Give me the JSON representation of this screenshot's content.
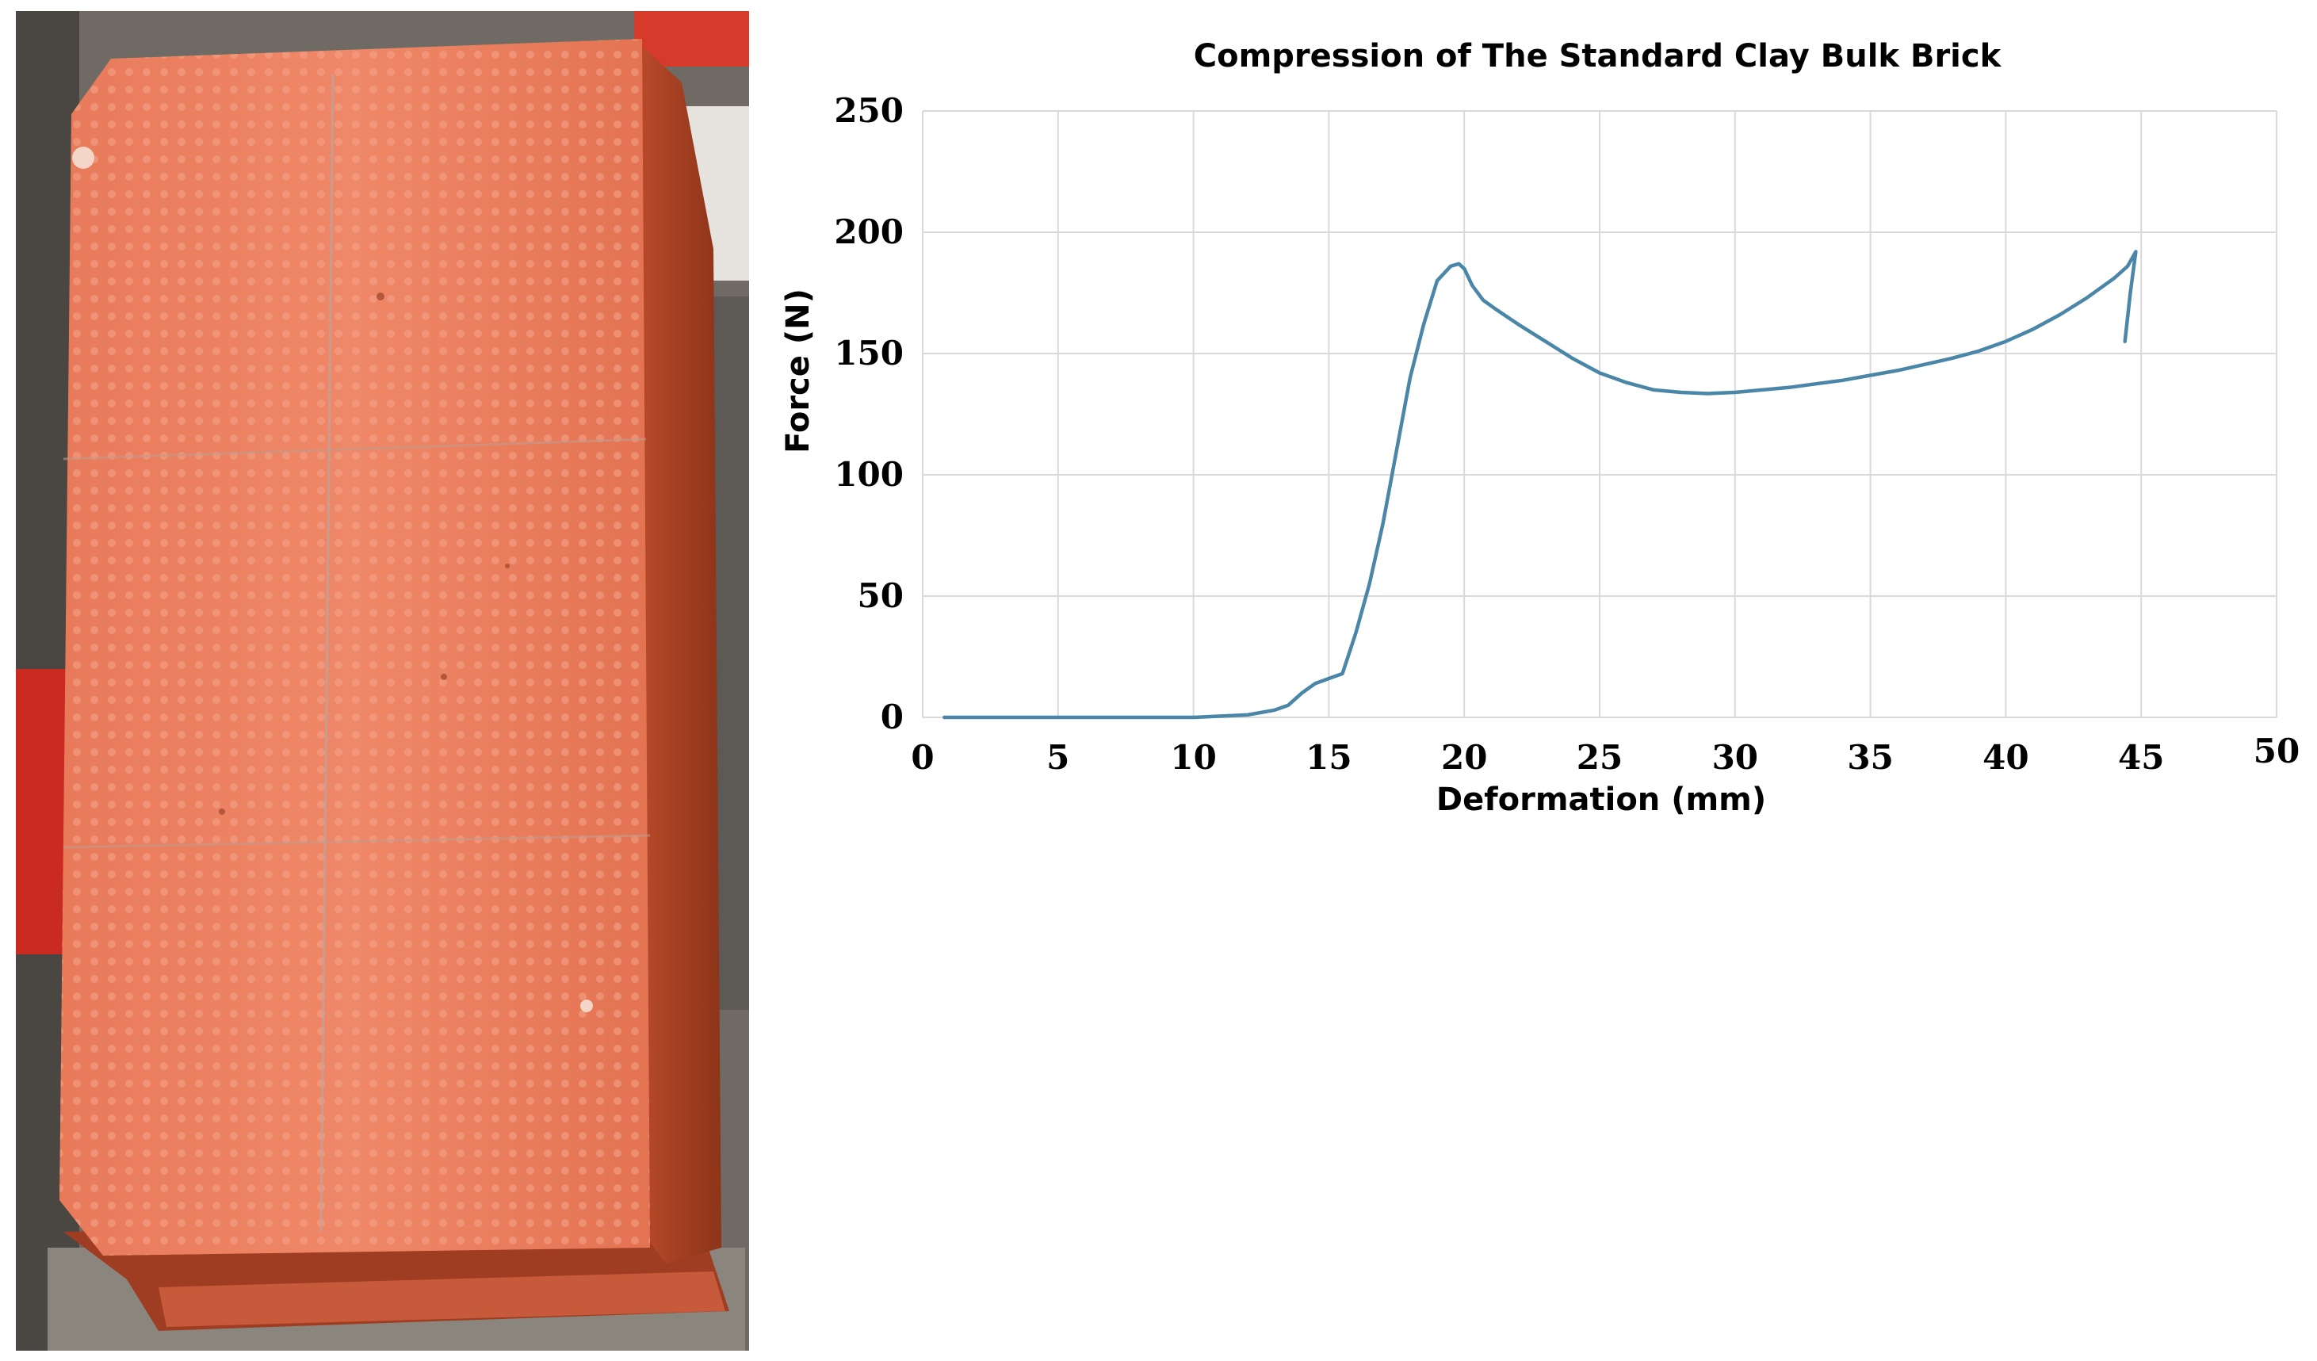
{
  "chart_data": {
    "type": "line",
    "title": "Compression of The Standard Clay Bulk Brick",
    "xlabel": "Deformation (mm)",
    "ylabel": "Force  (N)",
    "xlim": [
      0,
      50
    ],
    "ylim": [
      0,
      250
    ],
    "x_ticks": [
      0,
      5,
      10,
      15,
      20,
      25,
      30,
      35,
      40,
      45,
      50
    ],
    "y_ticks": [
      0,
      50,
      100,
      150,
      200,
      250
    ],
    "grid": true,
    "legend": "none",
    "series_color": "#4a86a8",
    "x": [
      0.8,
      5,
      10,
      12,
      13,
      13.5,
      14,
      14.5,
      15,
      15.5,
      16,
      16.5,
      17,
      17.5,
      18,
      18.5,
      19,
      19.5,
      19.8,
      20,
      20.3,
      20.7,
      21.2,
      22,
      23,
      24,
      25,
      26,
      27,
      28,
      29,
      30,
      31,
      32,
      33,
      34,
      35,
      36,
      37,
      38,
      39,
      40,
      41,
      42,
      43,
      44,
      44.5,
      44.8,
      44.6,
      44.4
    ],
    "y": [
      0,
      0,
      0,
      1,
      3,
      5,
      10,
      14,
      16,
      18,
      35,
      55,
      80,
      110,
      140,
      162,
      180,
      186,
      187,
      185,
      178,
      172,
      168,
      162,
      155,
      148,
      142,
      138,
      135,
      134,
      133.5,
      134,
      135,
      136,
      137.5,
      139,
      141,
      143,
      145.5,
      148,
      151,
      155,
      160,
      166,
      173,
      181,
      186,
      192,
      175,
      155
    ]
  }
}
